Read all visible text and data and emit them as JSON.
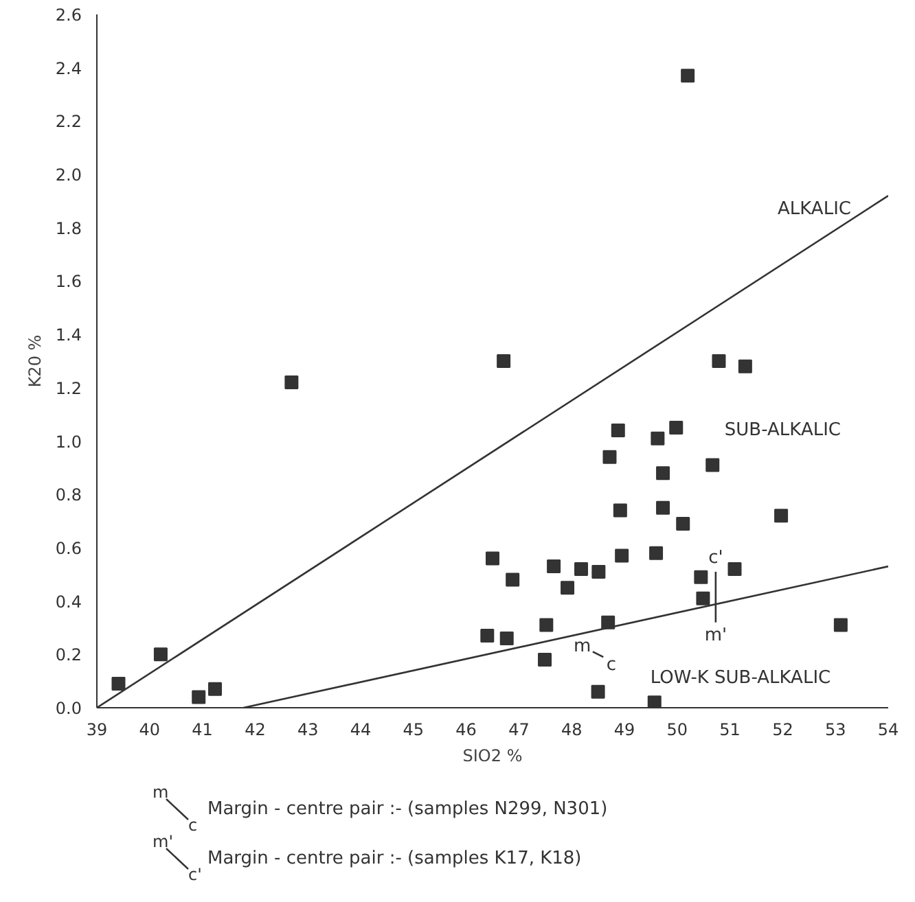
{
  "chart_data": {
    "type": "scatter",
    "xlabel": "SIO2 %",
    "ylabel": "K20 %",
    "xlim": [
      39,
      54
    ],
    "xticks": [
      39,
      40,
      41,
      42,
      43,
      44,
      45,
      46,
      47,
      48,
      49,
      50,
      51,
      52,
      53,
      54
    ],
    "ylim": [
      0,
      2.6
    ],
    "yticks": [
      {
        "value": 0,
        "label": "0.0"
      },
      {
        "value": 0.2,
        "label": "0.2"
      },
      {
        "value": 0.4,
        "label": "0.4"
      },
      {
        "value": 0.6,
        "label": "0.6"
      },
      {
        "value": 0.8,
        "label": "0.8"
      },
      {
        "value": 1,
        "label": "1.0"
      },
      {
        "value": 1.2,
        "label": "1.2"
      },
      {
        "value": 1.4,
        "label": "1.4"
      },
      {
        "value": 1.6,
        "label": "1.6"
      },
      {
        "value": 1.8,
        "label": "1.8"
      },
      {
        "value": 2,
        "label": "2.0"
      },
      {
        "value": 2.2,
        "label": "2.2"
      },
      {
        "value": 2.4,
        "label": "2.4"
      },
      {
        "value": 2.6,
        "label": "2.6"
      }
    ],
    "grid": false,
    "marker": "square",
    "series": [
      {
        "color": "#333333",
        "x": [
          39.41,
          40.21,
          40.93,
          41.24,
          42.69,
          50.2,
          46.71,
          50.79,
          51.29,
          48.88,
          49.63,
          49.98,
          48.72,
          49.73,
          50.67,
          48.92,
          49.73,
          50.11,
          51.97,
          46.5,
          46.88,
          47.66,
          47.92,
          48.18,
          48.51,
          48.95,
          49.6,
          50.45,
          51.09,
          50.49,
          47.52,
          48.69,
          46.4,
          46.77,
          47.49,
          48.5,
          49.57,
          53.1
        ],
        "values": [
          0.09,
          0.2,
          0.04,
          0.07,
          1.22,
          2.37,
          1.3,
          1.3,
          1.28,
          1.04,
          1.01,
          1.05,
          0.94,
          0.88,
          0.91,
          0.74,
          0.75,
          0.69,
          0.72,
          0.56,
          0.48,
          0.53,
          0.45,
          0.52,
          0.51,
          0.57,
          0.58,
          0.49,
          0.52,
          0.41,
          0.31,
          0.32,
          0.27,
          0.26,
          0.18,
          0.06,
          0.02,
          0.31
        ]
      },
      {
        "type": "line",
        "color": "#333333",
        "marker": "none",
        "x": [
          39,
          54
        ],
        "values": [
          0,
          1.92
        ]
      },
      {
        "type": "line",
        "color": "#333333",
        "marker": "none",
        "x": [
          41.78,
          54
        ],
        "values": [
          0,
          0.53
        ]
      },
      {
        "type": "line",
        "color": "#333333",
        "marker": "none",
        "x": [
          50.73,
          50.73
        ],
        "values": [
          0.51,
          0.32
        ]
      },
      {
        "type": "line",
        "color": "#333333",
        "marker": "none",
        "x": [
          48.4,
          48.6
        ],
        "values": [
          0.21,
          0.19
        ]
      }
    ],
    "annotations": [
      "ALKALIC",
      "SUB-ALKALIC",
      "LOW-K SUB-ALKALIC",
      "m",
      "c",
      "c'",
      "m'",
      "m",
      "c",
      "Margin - centre pair :- (samples N299, N301)",
      "m'",
      "c'",
      "Margin - centre pair :- (samples K17, K18)"
    ]
  }
}
